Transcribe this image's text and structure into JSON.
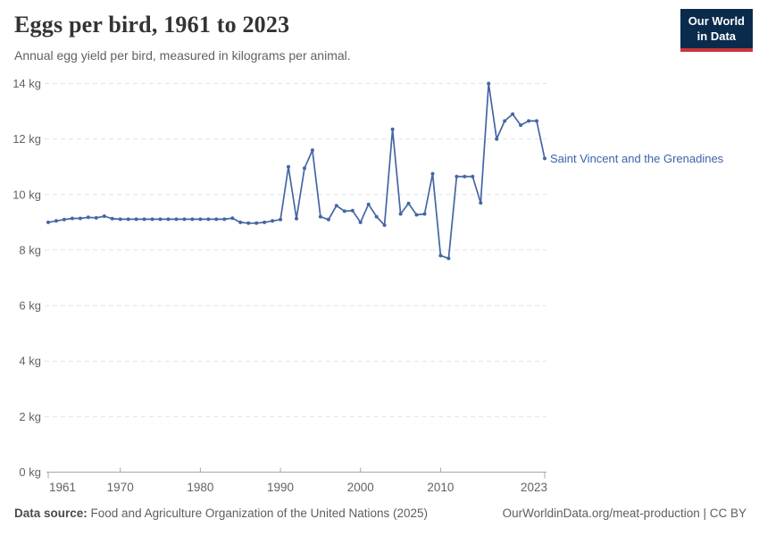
{
  "header": {
    "title": "Eggs per bird, 1961 to 2023",
    "subtitle": "Annual egg yield per bird, measured in kilograms per animal."
  },
  "logo": {
    "line1": "Our World",
    "line2": "in Data",
    "bg_color": "#0b2b4d",
    "accent_color": "#c5383a"
  },
  "chart_data": {
    "type": "line",
    "title": "Eggs per bird, 1961 to 2023",
    "xlabel": "",
    "ylabel": "",
    "unit": "kg",
    "xlim": [
      1961,
      2023
    ],
    "ylim": [
      0,
      14
    ],
    "x_ticks": [
      1961,
      1970,
      1980,
      1990,
      2000,
      2010,
      2023
    ],
    "y_ticks": [
      0,
      2,
      4,
      6,
      8,
      10,
      12,
      14
    ],
    "y_tick_suffix": " kg",
    "grid": "horizontal-dashed",
    "legend": "inline-end-label",
    "series": [
      {
        "name": "Saint Vincent and the Grenadines",
        "color": "#4566a3",
        "x": [
          1961,
          1962,
          1963,
          1964,
          1965,
          1966,
          1967,
          1968,
          1969,
          1970,
          1971,
          1972,
          1973,
          1974,
          1975,
          1976,
          1977,
          1978,
          1979,
          1980,
          1981,
          1982,
          1983,
          1984,
          1985,
          1986,
          1987,
          1988,
          1989,
          1990,
          1991,
          1992,
          1993,
          1994,
          1995,
          1996,
          1997,
          1998,
          1999,
          2000,
          2001,
          2002,
          2003,
          2004,
          2005,
          2006,
          2007,
          2008,
          2009,
          2010,
          2011,
          2012,
          2013,
          2014,
          2015,
          2016,
          2017,
          2018,
          2019,
          2020,
          2021,
          2022,
          2023
        ],
        "values": [
          9.0,
          9.05,
          9.1,
          9.14,
          9.14,
          9.18,
          9.16,
          9.22,
          9.13,
          9.11,
          9.11,
          9.11,
          9.11,
          9.11,
          9.11,
          9.11,
          9.11,
          9.11,
          9.11,
          9.11,
          9.11,
          9.11,
          9.11,
          9.15,
          9.0,
          8.97,
          8.97,
          9.0,
          9.05,
          9.1,
          11.0,
          9.13,
          10.95,
          11.6,
          9.2,
          9.1,
          9.6,
          9.4,
          9.42,
          9.0,
          9.65,
          9.2,
          8.9,
          12.35,
          9.3,
          9.68,
          9.27,
          9.3,
          10.75,
          7.8,
          7.7,
          10.65,
          10.65,
          10.65,
          9.7,
          14.0,
          12.0,
          12.65,
          12.9,
          12.5,
          12.65,
          12.65,
          11.3
        ]
      }
    ],
    "colors": {
      "grid": "#e2e2e2",
      "axis": "#a8a8a8",
      "tick_label": "#636363",
      "entity_label": "#3a64a9"
    }
  },
  "footer": {
    "source_label": "Data source:",
    "source_text": " Food and Agriculture Organization of the United Nations (2025)",
    "credit": "OurWorldinData.org/meat-production | CC BY"
  }
}
